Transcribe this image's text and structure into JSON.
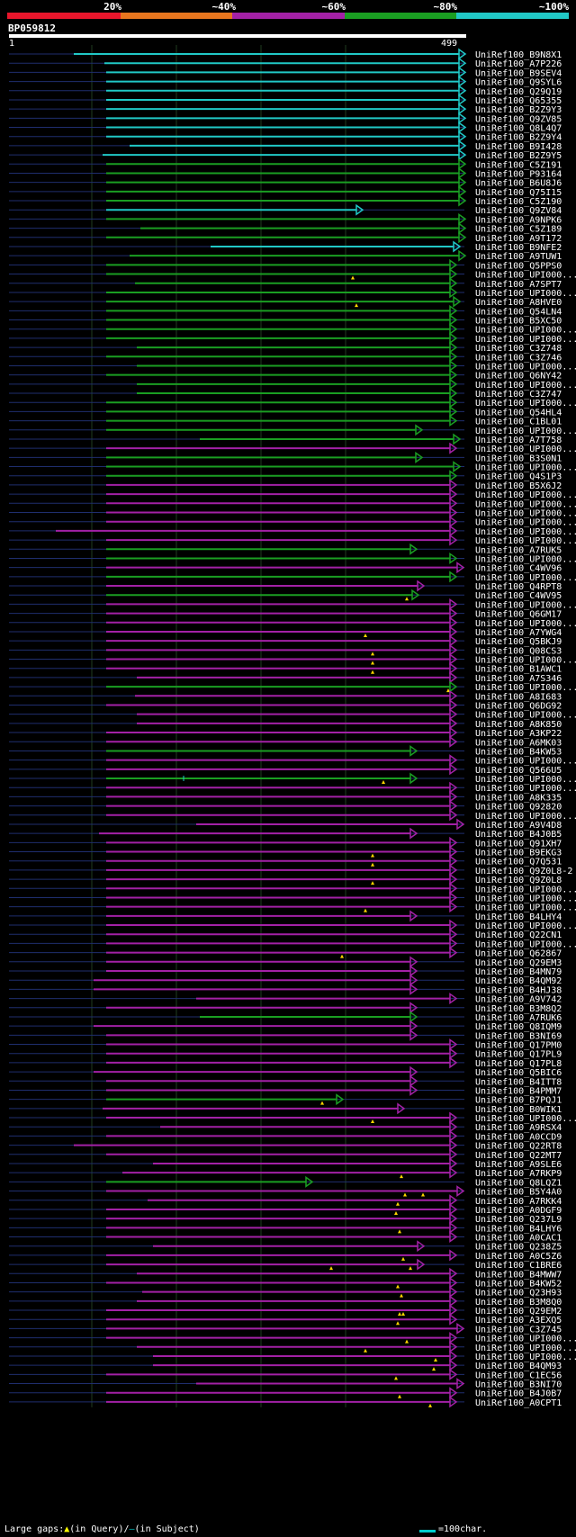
{
  "scale": {
    "labels": [
      "20%",
      "~40%",
      "~60%",
      "~80%",
      "~100%"
    ],
    "colors": [
      "#e8162b",
      "#e8761e",
      "#a321a6",
      "#1a9e22",
      "#21c8c6"
    ]
  },
  "query": {
    "id": "BP059812",
    "start": "1",
    "end": "499"
  },
  "colors": {
    "cyan": "#21c8c6",
    "green": "#1a9e22",
    "purple": "#a321a6",
    "grid": "#1f3d1f",
    "query_dash": "#1f2e6e",
    "marker": "#ffd600"
  },
  "hit_rows": [
    {
      "label": "UniRef100_B9N8X1",
      "s": 82,
      "e": 516,
      "c": "cyan"
    },
    {
      "label": "UniRef100_A7P226",
      "s": 116,
      "e": 516,
      "c": "cyan"
    },
    {
      "label": "UniRef100_B9SEV4",
      "s": 118,
      "e": 516,
      "c": "cyan"
    },
    {
      "label": "UniRef100_Q9SYL6",
      "s": 118,
      "e": 516,
      "c": "cyan"
    },
    {
      "label": "UniRef100_Q29Q19",
      "s": 118,
      "e": 516,
      "c": "cyan"
    },
    {
      "label": "UniRef100_Q65355",
      "s": 118,
      "e": 516,
      "c": "cyan"
    },
    {
      "label": "UniRef100_B2Z9Y3",
      "s": 118,
      "e": 516,
      "c": "cyan"
    },
    {
      "label": "UniRef100_Q9ZV85",
      "s": 118,
      "e": 516,
      "c": "cyan"
    },
    {
      "label": "UniRef100_Q8L4Q7",
      "s": 118,
      "e": 516,
      "c": "cyan"
    },
    {
      "label": "UniRef100_B2Z9Y4",
      "s": 118,
      "e": 516,
      "c": "cyan"
    },
    {
      "label": "UniRef100_B9I428",
      "s": 144,
      "e": 516,
      "c": "cyan"
    },
    {
      "label": "UniRef100_B2Z9Y5",
      "s": 114,
      "e": 516,
      "c": "cyan"
    },
    {
      "label": "UniRef100_C5Z191",
      "s": 118,
      "e": 516,
      "c": "green"
    },
    {
      "label": "UniRef100_P93164",
      "s": 118,
      "e": 516,
      "c": "green"
    },
    {
      "label": "UniRef100_B6U8J6",
      "s": 118,
      "e": 516,
      "c": "green"
    },
    {
      "label": "UniRef100_Q75I15",
      "s": 118,
      "e": 516,
      "c": "green"
    },
    {
      "label": "UniRef100_C5Z190",
      "s": 118,
      "e": 516,
      "c": "green"
    },
    {
      "label": "UniRef100_Q9ZV84",
      "s": 118,
      "e": 402,
      "c": "cyan"
    },
    {
      "label": "UniRef100_A9NPK6",
      "s": 118,
      "e": 516,
      "c": "green"
    },
    {
      "label": "UniRef100_C5Z189",
      "s": 156,
      "e": 516,
      "c": "green"
    },
    {
      "label": "UniRef100_A9T172",
      "s": 118,
      "e": 516,
      "c": "green"
    },
    {
      "label": "UniRef100_B9NFE2",
      "s": 234,
      "e": 510,
      "c": "cyan"
    },
    {
      "label": "UniRef100_A9TUW1",
      "s": 144,
      "e": 516,
      "c": "green"
    },
    {
      "label": "UniRef100_Q5PPS0",
      "s": 118,
      "e": 506,
      "c": "green"
    },
    {
      "label": "UniRef100_UPI000...",
      "s": 118,
      "e": 506,
      "c": "green",
      "m": [
        392
      ]
    },
    {
      "label": "UniRef100_A7SPT7",
      "s": 150,
      "e": 506,
      "c": "green"
    },
    {
      "label": "UniRef100_UPI000...",
      "s": 118,
      "e": 506,
      "c": "green"
    },
    {
      "label": "UniRef100_A8HVE0",
      "s": 118,
      "e": 510,
      "c": "green",
      "m": [
        396
      ]
    },
    {
      "label": "UniRef100_Q54LN4",
      "s": 118,
      "e": 506,
      "c": "green"
    },
    {
      "label": "UniRef100_B5XC50",
      "s": 118,
      "e": 506,
      "c": "green"
    },
    {
      "label": "UniRef100_UPI000...",
      "s": 118,
      "e": 506,
      "c": "green"
    },
    {
      "label": "UniRef100_UPI000...",
      "s": 118,
      "e": 506,
      "c": "green"
    },
    {
      "label": "UniRef100_C3Z748",
      "s": 152,
      "e": 506,
      "c": "green"
    },
    {
      "label": "UniRef100_C3Z746",
      "s": 118,
      "e": 506,
      "c": "green"
    },
    {
      "label": "UniRef100_UPI000...",
      "s": 152,
      "e": 506,
      "c": "green"
    },
    {
      "label": "UniRef100_Q6NY42",
      "s": 118,
      "e": 506,
      "c": "green"
    },
    {
      "label": "UniRef100_UPI000...",
      "s": 152,
      "e": 506,
      "c": "green"
    },
    {
      "label": "UniRef100_C3Z747",
      "s": 152,
      "e": 506,
      "c": "green"
    },
    {
      "label": "UniRef100_UPI000...",
      "s": 118,
      "e": 506,
      "c": "green"
    },
    {
      "label": "UniRef100_Q54HL4",
      "s": 118,
      "e": 506,
      "c": "green"
    },
    {
      "label": "UniRef100_C1BL01",
      "s": 118,
      "e": 506,
      "c": "green"
    },
    {
      "label": "UniRef100_UPI000...",
      "s": 118,
      "e": 468,
      "c": "green"
    },
    {
      "label": "UniRef100_A7T758",
      "s": 222,
      "e": 510,
      "c": "green"
    },
    {
      "label": "UniRef100_UPI000...",
      "s": 118,
      "e": 506,
      "c": "purple"
    },
    {
      "label": "UniRef100_B3S0N1",
      "s": 118,
      "e": 468,
      "c": "green"
    },
    {
      "label": "UniRef100_UPI000...",
      "s": 118,
      "e": 510,
      "c": "green"
    },
    {
      "label": "UniRef100_Q4S1P3",
      "s": 118,
      "e": 506,
      "c": "green"
    },
    {
      "label": "UniRef100_B5X6J2",
      "s": 118,
      "e": 506,
      "c": "purple"
    },
    {
      "label": "UniRef100_UPI000...",
      "s": 118,
      "e": 506,
      "c": "purple"
    },
    {
      "label": "UniRef100_UPI000...",
      "s": 118,
      "e": 506,
      "c": "purple"
    },
    {
      "label": "UniRef100_UPI000...",
      "s": 118,
      "e": 506,
      "c": "purple"
    },
    {
      "label": "UniRef100_UPI000...",
      "s": 118,
      "e": 506,
      "c": "purple"
    },
    {
      "label": "UniRef100_UPI000...",
      "s": 62,
      "e": 506,
      "c": "purple"
    },
    {
      "label": "UniRef100_UPI000...",
      "s": 118,
      "e": 506,
      "c": "purple"
    },
    {
      "label": "UniRef100_A7RUK5",
      "s": 118,
      "e": 462,
      "c": "green"
    },
    {
      "label": "UniRef100_UPI000...",
      "s": 118,
      "e": 506,
      "c": "green"
    },
    {
      "label": "UniRef100_C4WV96",
      "s": 118,
      "e": 514,
      "c": "purple"
    },
    {
      "label": "UniRef100_UPI000...",
      "s": 118,
      "e": 506,
      "c": "green"
    },
    {
      "label": "UniRef100_Q4RPT8",
      "s": 118,
      "e": 470,
      "c": "purple"
    },
    {
      "label": "UniRef100_C4WV95",
      "s": 118,
      "e": 464,
      "c": "green",
      "m": [
        452
      ]
    },
    {
      "label": "UniRef100_UPI000...",
      "s": 118,
      "e": 506,
      "c": "purple"
    },
    {
      "label": "UniRef100_Q6GM17",
      "s": 118,
      "e": 506,
      "c": "purple"
    },
    {
      "label": "UniRef100_UPI000...",
      "s": 118,
      "e": 506,
      "c": "purple"
    },
    {
      "label": "UniRef100_A7YWG4",
      "s": 118,
      "e": 506,
      "c": "purple",
      "m": [
        406
      ]
    },
    {
      "label": "UniRef100_Q5BKJ9",
      "s": 118,
      "e": 506,
      "c": "purple"
    },
    {
      "label": "UniRef100_Q08CS3",
      "s": 118,
      "e": 506,
      "c": "purple",
      "m": [
        414
      ]
    },
    {
      "label": "UniRef100_UPI000...",
      "s": 118,
      "e": 506,
      "c": "purple",
      "m": [
        414
      ]
    },
    {
      "label": "UniRef100_B1AWC1",
      "s": 118,
      "e": 506,
      "c": "purple",
      "m": [
        414
      ]
    },
    {
      "label": "UniRef100_A7S346",
      "s": 152,
      "e": 506,
      "c": "purple"
    },
    {
      "label": "UniRef100_UPI000...",
      "s": 118,
      "e": 506,
      "c": "green",
      "m": [
        498
      ]
    },
    {
      "label": "UniRef100_A8I683",
      "s": 150,
      "e": 506,
      "c": "purple"
    },
    {
      "label": "UniRef100_Q6DG92",
      "s": 118,
      "e": 506,
      "c": "purple"
    },
    {
      "label": "UniRef100_UPI000...",
      "s": 152,
      "e": 506,
      "c": "purple"
    },
    {
      "label": "UniRef100_A8K850",
      "s": 152,
      "e": 506,
      "c": "purple"
    },
    {
      "label": "UniRef100_A3KP22",
      "s": 118,
      "e": 506,
      "c": "purple"
    },
    {
      "label": "UniRef100_A6MK03",
      "s": 118,
      "e": 506,
      "c": "purple"
    },
    {
      "label": "UniRef100_B4KW53",
      "s": 118,
      "e": 462,
      "c": "green"
    },
    {
      "label": "UniRef100_UPI000...",
      "s": 118,
      "e": 506,
      "c": "purple"
    },
    {
      "label": "UniRef100_Q566U5",
      "s": 118,
      "e": 506,
      "c": "purple"
    },
    {
      "label": "UniRef100_UPI000...",
      "s": 118,
      "e": 462,
      "c": "green",
      "m": [
        426
      ],
      "g": [
        204
      ]
    },
    {
      "label": "UniRef100_UPI000...",
      "s": 118,
      "e": 506,
      "c": "purple"
    },
    {
      "label": "UniRef100_A8K335",
      "s": 118,
      "e": 506,
      "c": "purple"
    },
    {
      "label": "UniRef100_Q92820",
      "s": 118,
      "e": 506,
      "c": "purple"
    },
    {
      "label": "UniRef100_UPI000...",
      "s": 118,
      "e": 506,
      "c": "purple"
    },
    {
      "label": "UniRef100_A9V4D8",
      "s": 218,
      "e": 514,
      "c": "purple"
    },
    {
      "label": "UniRef100_B4J0B5",
      "s": 110,
      "e": 462,
      "c": "purple"
    },
    {
      "label": "UniRef100_Q91XH7",
      "s": 118,
      "e": 506,
      "c": "purple"
    },
    {
      "label": "UniRef100_B9EKG3",
      "s": 118,
      "e": 506,
      "c": "purple",
      "m": [
        414
      ]
    },
    {
      "label": "UniRef100_Q7Q531",
      "s": 118,
      "e": 506,
      "c": "purple",
      "m": [
        414
      ]
    },
    {
      "label": "UniRef100_Q9Z0L8-2",
      "s": 118,
      "e": 506,
      "c": "purple"
    },
    {
      "label": "UniRef100_Q9Z0L8",
      "s": 118,
      "e": 506,
      "c": "purple",
      "m": [
        414
      ]
    },
    {
      "label": "UniRef100_UPI000...",
      "s": 118,
      "e": 506,
      "c": "purple"
    },
    {
      "label": "UniRef100_UPI000...",
      "s": 118,
      "e": 506,
      "c": "purple"
    },
    {
      "label": "UniRef100_UPI000...",
      "s": 118,
      "e": 506,
      "c": "purple",
      "m": [
        406
      ]
    },
    {
      "label": "UniRef100_B4LHY4",
      "s": 118,
      "e": 462,
      "c": "purple"
    },
    {
      "label": "UniRef100_UPI000...",
      "s": 118,
      "e": 506,
      "c": "purple"
    },
    {
      "label": "UniRef100_Q22CN1",
      "s": 118,
      "e": 506,
      "c": "purple"
    },
    {
      "label": "UniRef100_UPI000...",
      "s": 118,
      "e": 506,
      "c": "purple"
    },
    {
      "label": "UniRef100_Q62867",
      "s": 118,
      "e": 506,
      "c": "purple",
      "m": [
        380
      ]
    },
    {
      "label": "UniRef100_Q29EM3",
      "s": 118,
      "e": 462,
      "c": "purple"
    },
    {
      "label": "UniRef100_B4MN79",
      "s": 118,
      "e": 462,
      "c": "purple"
    },
    {
      "label": "UniRef100_B4QM92",
      "s": 104,
      "e": 462,
      "c": "purple"
    },
    {
      "label": "UniRef100_B4HJ38",
      "s": 104,
      "e": 462,
      "c": "purple"
    },
    {
      "label": "UniRef100_A9V742",
      "s": 218,
      "e": 506,
      "c": "purple"
    },
    {
      "label": "UniRef100_B3M8Q2",
      "s": 118,
      "e": 462,
      "c": "purple"
    },
    {
      "label": "UniRef100_A7RUK6",
      "s": 222,
      "e": 462,
      "c": "green"
    },
    {
      "label": "UniRef100_Q8IQM9",
      "s": 104,
      "e": 462,
      "c": "purple"
    },
    {
      "label": "UniRef100_B3NI69",
      "s": 118,
      "e": 462,
      "c": "purple"
    },
    {
      "label": "UniRef100_Q17PM0",
      "s": 118,
      "e": 506,
      "c": "purple"
    },
    {
      "label": "UniRef100_Q17PL9",
      "s": 118,
      "e": 506,
      "c": "purple"
    },
    {
      "label": "UniRef100_Q17PL8",
      "s": 118,
      "e": 506,
      "c": "purple"
    },
    {
      "label": "UniRef100_Q5BIC6",
      "s": 104,
      "e": 462,
      "c": "purple"
    },
    {
      "label": "UniRef100_B4ITT8",
      "s": 118,
      "e": 462,
      "c": "purple"
    },
    {
      "label": "UniRef100_B4PMM7",
      "s": 118,
      "e": 462,
      "c": "purple"
    },
    {
      "label": "UniRef100_B7PQJ1",
      "s": 118,
      "e": 380,
      "c": "green",
      "m": [
        358
      ]
    },
    {
      "label": "UniRef100_B0WIK1",
      "s": 114,
      "e": 448,
      "c": "purple"
    },
    {
      "label": "UniRef100_UPI000...",
      "s": 118,
      "e": 506,
      "c": "purple",
      "m": [
        414
      ]
    },
    {
      "label": "UniRef100_A9RSX4",
      "s": 178,
      "e": 506,
      "c": "purple"
    },
    {
      "label": "UniRef100_A0CCD9",
      "s": 118,
      "e": 506,
      "c": "purple"
    },
    {
      "label": "UniRef100_Q22RT8",
      "s": 82,
      "e": 506,
      "c": "purple"
    },
    {
      "label": "UniRef100_Q22MT7",
      "s": 118,
      "e": 506,
      "c": "purple"
    },
    {
      "label": "UniRef100_A9SLE6",
      "s": 170,
      "e": 506,
      "c": "purple"
    },
    {
      "label": "UniRef100_A7RKP9",
      "s": 136,
      "e": 506,
      "c": "purple",
      "m": [
        446
      ]
    },
    {
      "label": "UniRef100_Q8LQZ1",
      "s": 118,
      "e": 346,
      "c": "green"
    },
    {
      "label": "UniRef100_B5Y4A0",
      "s": 118,
      "e": 514,
      "c": "purple",
      "m": [
        450,
        470
      ]
    },
    {
      "label": "UniRef100_A7RKK4",
      "s": 164,
      "e": 506,
      "c": "purple",
      "m": [
        442
      ]
    },
    {
      "label": "UniRef100_A0DGF9",
      "s": 118,
      "e": 506,
      "c": "purple",
      "m": [
        440
      ]
    },
    {
      "label": "UniRef100_Q237L9",
      "s": 118,
      "e": 506,
      "c": "purple"
    },
    {
      "label": "UniRef100_B4LHY6",
      "s": 118,
      "e": 506,
      "c": "purple",
      "m": [
        444
      ]
    },
    {
      "label": "UniRef100_A0CAC1",
      "s": 118,
      "e": 506,
      "c": "purple"
    },
    {
      "label": "UniRef100_Q238Z5",
      "s": 170,
      "e": 470,
      "c": "purple"
    },
    {
      "label": "UniRef100_A0C5Z6",
      "s": 118,
      "e": 506,
      "c": "purple",
      "m": [
        448
      ]
    },
    {
      "label": "UniRef100_C1BRE6",
      "s": 118,
      "e": 470,
      "c": "purple",
      "m": [
        368,
        456
      ]
    },
    {
      "label": "UniRef100_B4MWW7",
      "s": 152,
      "e": 506,
      "c": "purple"
    },
    {
      "label": "UniRef100_B4KW52",
      "s": 118,
      "e": 506,
      "c": "purple",
      "m": [
        442
      ]
    },
    {
      "label": "UniRef100_Q23H93",
      "s": 158,
      "e": 506,
      "c": "purple",
      "m": [
        446
      ]
    },
    {
      "label": "UniRef100_B3M8Q0",
      "s": 152,
      "e": 506,
      "c": "purple"
    },
    {
      "label": "UniRef100_Q29EM2",
      "s": 118,
      "e": 506,
      "c": "purple",
      "m": [
        444,
        448
      ]
    },
    {
      "label": "UniRef100_A3EXQ5",
      "s": 118,
      "e": 506,
      "c": "purple",
      "m": [
        442
      ]
    },
    {
      "label": "UniRef100_C3Z745",
      "s": 118,
      "e": 514,
      "c": "purple"
    },
    {
      "label": "UniRef100_UPI000...",
      "s": 118,
      "e": 506,
      "c": "purple",
      "m": [
        452
      ]
    },
    {
      "label": "UniRef100_UPI000...",
      "s": 152,
      "e": 506,
      "c": "purple",
      "m": [
        406
      ]
    },
    {
      "label": "UniRef100_UPI000...",
      "s": 170,
      "e": 506,
      "c": "purple",
      "m": [
        484
      ]
    },
    {
      "label": "UniRef100_B4QM93",
      "s": 170,
      "e": 506,
      "c": "purple",
      "m": [
        482
      ]
    },
    {
      "label": "UniRef100_C1EC56",
      "s": 118,
      "e": 506,
      "c": "purple",
      "m": [
        440
      ]
    },
    {
      "label": "UniRef100_B3NI70",
      "s": 218,
      "e": 514,
      "c": "purple"
    },
    {
      "label": "UniRef100_B4J0B7",
      "s": 118,
      "e": 506,
      "c": "purple",
      "m": [
        444
      ]
    },
    {
      "label": "UniRef100_A0CPT1",
      "s": 118,
      "e": 506,
      "c": "purple",
      "m": [
        478
      ]
    }
  ],
  "footer": {
    "prefix": "Large gaps:",
    "in_query": "(in Query)/",
    "in_subject": "(in Subject)",
    "legend": "=100char."
  }
}
